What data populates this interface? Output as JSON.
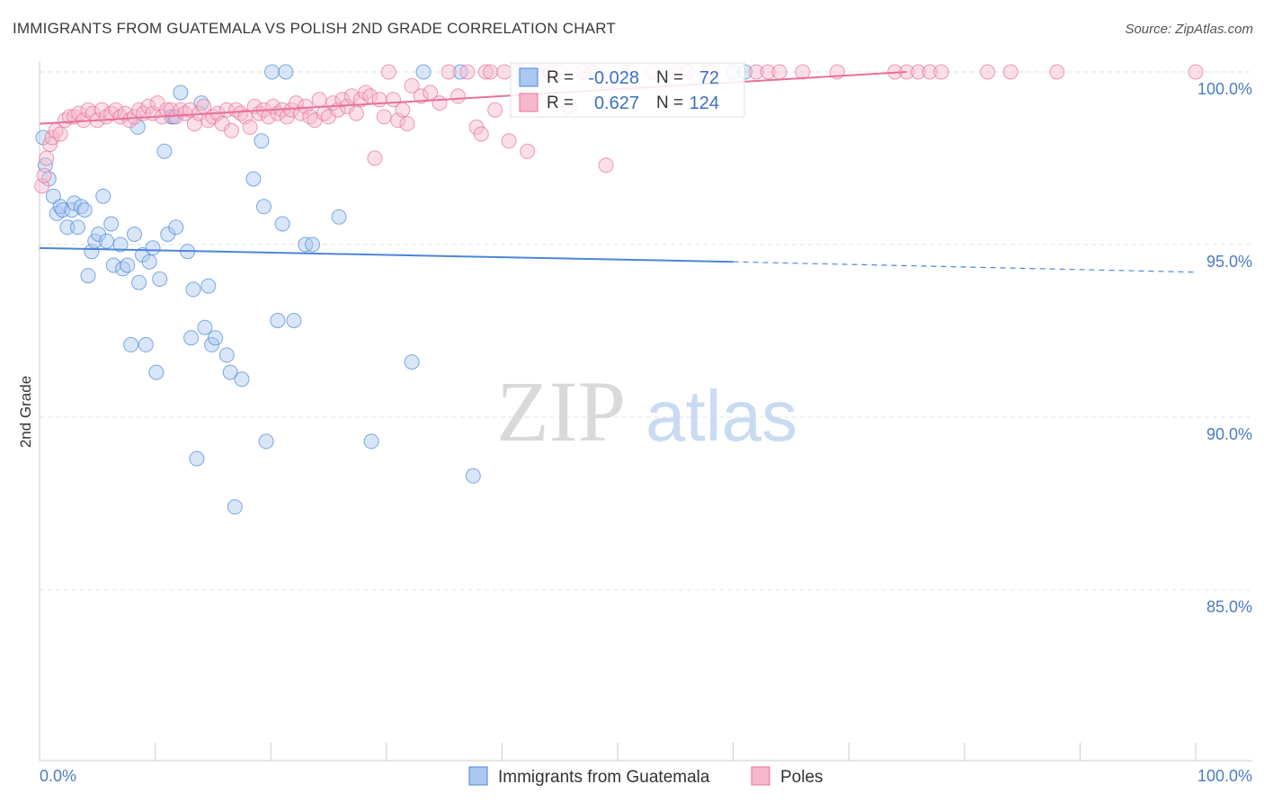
{
  "title": "IMMIGRANTS FROM GUATEMALA VS POLISH 2ND GRADE CORRELATION CHART",
  "source": "Source: ZipAtlas.com",
  "watermark": {
    "zip": "ZIP",
    "atlas": "atlas"
  },
  "colors": {
    "blue": "#4a86d8",
    "blue_fill": "#aac8f0",
    "pink": "#e8709a",
    "pink_fill": "#f5b8cc",
    "axis_label": "#4a7cc4",
    "grid": "#e2e2e2"
  },
  "chart_data": {
    "type": "scatter",
    "title": "IMMIGRANTS FROM GUATEMALA VS POLISH 2ND GRADE CORRELATION CHART",
    "xlabel": "",
    "ylabel": "2nd Grade",
    "xlim": [
      0,
      100
    ],
    "ylim": [
      80.5,
      100.8
    ],
    "x_tick_labels": [
      "0.0%",
      "100.0%"
    ],
    "y_ticks": [
      85,
      90,
      95,
      100
    ],
    "y_tick_labels": [
      "85.0%",
      "90.0%",
      "95.0%",
      "100.0%"
    ],
    "grid": true,
    "legend_position": "bottom",
    "stats": [
      {
        "r_label": "R =",
        "r": "-0.028",
        "n_label": "N =",
        "n": "72"
      },
      {
        "r_label": "R =",
        "r": "0.627",
        "n_label": "N =",
        "n": "124"
      }
    ],
    "series": [
      {
        "name": "Immigrants from Guatemala",
        "color": "#4a86d8",
        "trend": {
          "x": [
            0,
            60
          ],
          "y": [
            94.9,
            94.5
          ],
          "dashed_to": [
            100,
            94.2
          ]
        },
        "points": [
          [
            0.3,
            98.1
          ],
          [
            0.5,
            97.3
          ],
          [
            0.8,
            96.9
          ],
          [
            1.2,
            96.4
          ],
          [
            1.5,
            95.9
          ],
          [
            1.8,
            96.1
          ],
          [
            2.0,
            96.0
          ],
          [
            2.4,
            95.5
          ],
          [
            2.8,
            96.0
          ],
          [
            3.0,
            96.2
          ],
          [
            3.3,
            95.5
          ],
          [
            3.6,
            96.1
          ],
          [
            3.9,
            96.0
          ],
          [
            4.2,
            94.1
          ],
          [
            4.5,
            94.8
          ],
          [
            4.8,
            95.1
          ],
          [
            5.1,
            95.3
          ],
          [
            5.5,
            96.4
          ],
          [
            5.8,
            95.1
          ],
          [
            6.2,
            95.6
          ],
          [
            6.4,
            94.4
          ],
          [
            7.0,
            95.0
          ],
          [
            7.2,
            94.3
          ],
          [
            7.6,
            94.4
          ],
          [
            7.9,
            92.1
          ],
          [
            8.2,
            95.3
          ],
          [
            8.6,
            93.9
          ],
          [
            8.9,
            94.7
          ],
          [
            9.2,
            92.1
          ],
          [
            9.5,
            94.5
          ],
          [
            9.8,
            94.9
          ],
          [
            10.1,
            91.3
          ],
          [
            10.4,
            94.0
          ],
          [
            10.8,
            97.7
          ],
          [
            11.1,
            95.3
          ],
          [
            11.4,
            98.7
          ],
          [
            11.8,
            95.5
          ],
          [
            12.2,
            99.4
          ],
          [
            12.8,
            94.8
          ],
          [
            13.1,
            92.3
          ],
          [
            13.3,
            93.7
          ],
          [
            13.6,
            88.8
          ],
          [
            14.0,
            99.1
          ],
          [
            14.3,
            92.6
          ],
          [
            14.6,
            93.8
          ],
          [
            14.9,
            92.1
          ],
          [
            15.2,
            92.3
          ],
          [
            16.2,
            91.8
          ],
          [
            16.5,
            91.3
          ],
          [
            16.9,
            87.4
          ],
          [
            17.5,
            91.1
          ],
          [
            18.5,
            96.9
          ],
          [
            19.2,
            98.0
          ],
          [
            19.4,
            96.1
          ],
          [
            19.6,
            89.3
          ],
          [
            20.1,
            100.0
          ],
          [
            20.6,
            92.8
          ],
          [
            21.0,
            95.6
          ],
          [
            21.3,
            100.0
          ],
          [
            22.0,
            92.8
          ],
          [
            23.0,
            95.0
          ],
          [
            23.6,
            95.0
          ],
          [
            25.9,
            95.8
          ],
          [
            28.7,
            89.3
          ],
          [
            32.2,
            91.6
          ],
          [
            33.2,
            100.0
          ],
          [
            36.4,
            100.0
          ],
          [
            37.5,
            88.3
          ],
          [
            60.0,
            100.0
          ],
          [
            61.0,
            100.0
          ],
          [
            8.5,
            98.4
          ],
          [
            11.6,
            98.7
          ]
        ]
      },
      {
        "name": "Poles",
        "color": "#e8709a",
        "trend": {
          "x": [
            0,
            75
          ],
          "y": [
            98.5,
            100.0
          ]
        },
        "points": [
          [
            0.2,
            96.7
          ],
          [
            0.4,
            97.0
          ],
          [
            0.6,
            97.5
          ],
          [
            0.9,
            97.9
          ],
          [
            1.1,
            98.1
          ],
          [
            1.4,
            98.3
          ],
          [
            1.8,
            98.2
          ],
          [
            2.2,
            98.6
          ],
          [
            2.6,
            98.7
          ],
          [
            3.0,
            98.7
          ],
          [
            3.4,
            98.8
          ],
          [
            3.8,
            98.6
          ],
          [
            4.2,
            98.9
          ],
          [
            4.6,
            98.8
          ],
          [
            5.0,
            98.6
          ],
          [
            5.4,
            98.9
          ],
          [
            5.8,
            98.7
          ],
          [
            6.2,
            98.8
          ],
          [
            6.6,
            98.9
          ],
          [
            7.0,
            98.7
          ],
          [
            7.4,
            98.8
          ],
          [
            7.8,
            98.6
          ],
          [
            8.2,
            98.7
          ],
          [
            8.6,
            98.9
          ],
          [
            9.0,
            98.8
          ],
          [
            9.4,
            99.0
          ],
          [
            9.8,
            98.8
          ],
          [
            10.2,
            99.1
          ],
          [
            10.6,
            98.7
          ],
          [
            11.0,
            98.9
          ],
          [
            11.4,
            98.9
          ],
          [
            11.8,
            98.7
          ],
          [
            12.2,
            98.9
          ],
          [
            12.6,
            98.8
          ],
          [
            13.0,
            98.9
          ],
          [
            13.4,
            98.5
          ],
          [
            13.8,
            98.8
          ],
          [
            14.2,
            99.0
          ],
          [
            14.6,
            98.6
          ],
          [
            15.0,
            98.7
          ],
          [
            15.4,
            98.8
          ],
          [
            15.8,
            98.5
          ],
          [
            16.2,
            98.9
          ],
          [
            16.6,
            98.3
          ],
          [
            17.0,
            98.9
          ],
          [
            17.4,
            98.8
          ],
          [
            17.8,
            98.7
          ],
          [
            18.2,
            98.4
          ],
          [
            18.6,
            99.0
          ],
          [
            19.0,
            98.8
          ],
          [
            19.4,
            98.9
          ],
          [
            19.8,
            98.7
          ],
          [
            20.2,
            99.0
          ],
          [
            20.6,
            98.8
          ],
          [
            21.0,
            98.9
          ],
          [
            21.4,
            98.7
          ],
          [
            21.8,
            98.9
          ],
          [
            22.2,
            99.1
          ],
          [
            22.6,
            98.8
          ],
          [
            23.0,
            99.0
          ],
          [
            23.4,
            98.7
          ],
          [
            23.8,
            98.6
          ],
          [
            24.2,
            99.2
          ],
          [
            24.6,
            98.8
          ],
          [
            25.0,
            98.7
          ],
          [
            25.4,
            99.1
          ],
          [
            25.8,
            98.9
          ],
          [
            26.2,
            99.2
          ],
          [
            26.6,
            99.0
          ],
          [
            27.0,
            99.3
          ],
          [
            27.4,
            98.8
          ],
          [
            27.8,
            99.2
          ],
          [
            28.2,
            99.4
          ],
          [
            28.6,
            99.3
          ],
          [
            29.0,
            97.5
          ],
          [
            29.4,
            99.2
          ],
          [
            29.8,
            98.7
          ],
          [
            30.2,
            100.0
          ],
          [
            30.6,
            99.2
          ],
          [
            31.0,
            98.6
          ],
          [
            31.4,
            98.9
          ],
          [
            31.8,
            98.5
          ],
          [
            32.2,
            99.6
          ],
          [
            33.0,
            99.3
          ],
          [
            33.8,
            99.4
          ],
          [
            34.6,
            99.1
          ],
          [
            35.4,
            100.0
          ],
          [
            36.2,
            99.3
          ],
          [
            37.0,
            100.0
          ],
          [
            37.8,
            98.4
          ],
          [
            38.2,
            98.2
          ],
          [
            38.6,
            100.0
          ],
          [
            39.0,
            100.0
          ],
          [
            39.4,
            98.9
          ],
          [
            40.2,
            100.0
          ],
          [
            40.6,
            98.0
          ],
          [
            41.4,
            100.0
          ],
          [
            42.2,
            97.7
          ],
          [
            43.0,
            100.0
          ],
          [
            44.2,
            100.0
          ],
          [
            45.0,
            100.0
          ],
          [
            45.8,
            99.0
          ],
          [
            47.0,
            100.0
          ],
          [
            47.8,
            100.0
          ],
          [
            49.0,
            97.3
          ],
          [
            51.0,
            100.0
          ],
          [
            53.0,
            100.0
          ],
          [
            55.0,
            100.0
          ],
          [
            56.0,
            100.0
          ],
          [
            58.0,
            100.0
          ],
          [
            62.0,
            100.0
          ],
          [
            63.0,
            100.0
          ],
          [
            64.0,
            100.0
          ],
          [
            66.0,
            100.0
          ],
          [
            69.0,
            100.0
          ],
          [
            74.0,
            100.0
          ],
          [
            75.0,
            100.0
          ],
          [
            76.0,
            100.0
          ],
          [
            77.0,
            100.0
          ],
          [
            78.0,
            100.0
          ],
          [
            82.0,
            100.0
          ],
          [
            84.0,
            100.0
          ],
          [
            88.0,
            100.0
          ],
          [
            100.0,
            100.0
          ]
        ]
      }
    ]
  }
}
